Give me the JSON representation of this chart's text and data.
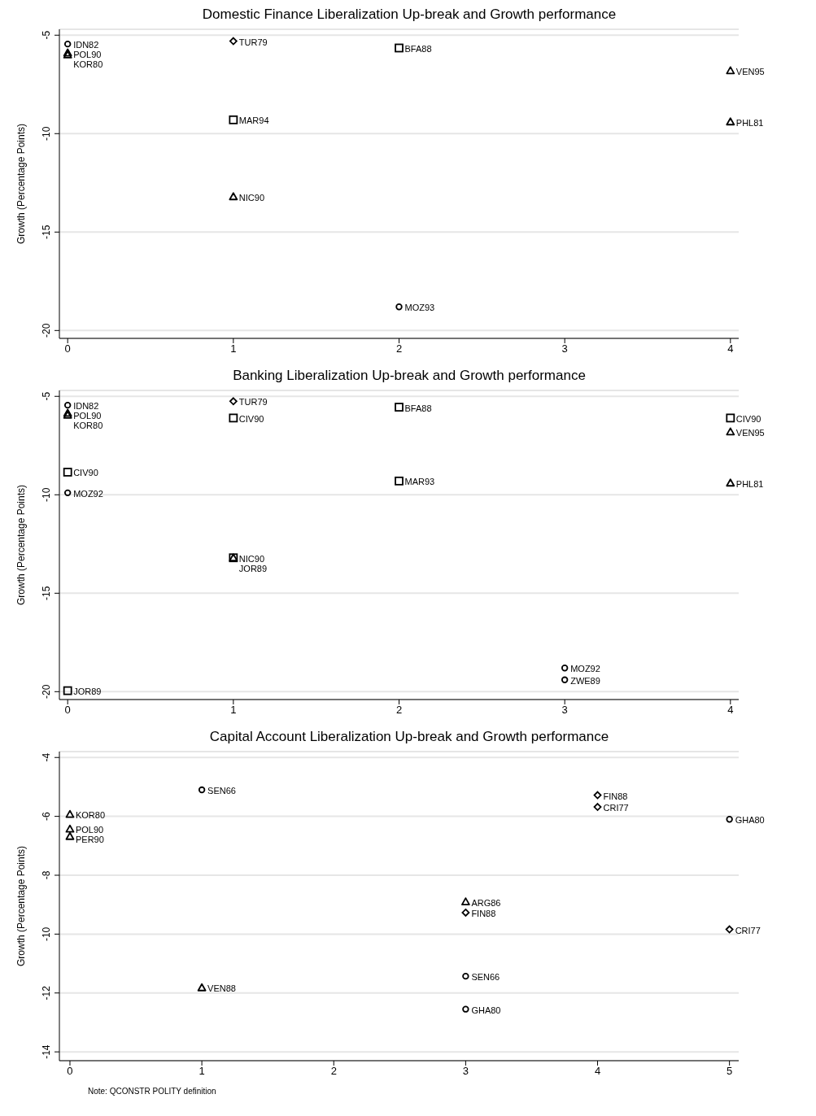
{
  "chart_data": [
    {
      "type": "scatter",
      "title": "Domestic Finance Liberalization Up-break and Growth performance",
      "ylabel": "Growth (Percentage Points)",
      "xlim": [
        -0.05,
        4.05
      ],
      "xticks": [
        0,
        1,
        2,
        3,
        4
      ],
      "ylim": [
        -20.4,
        -4.7
      ],
      "yticks": [
        -20,
        -15,
        -10,
        -5
      ],
      "grid": "y",
      "series": [
        {
          "type": "scatter",
          "marker": "circle",
          "color": "#000000",
          "x": [
            0,
            2
          ],
          "values": [
            -5.45,
            -18.8
          ]
        },
        {
          "type": "scatter",
          "marker": "triangle",
          "color": "#000000",
          "x": [
            0,
            0,
            1,
            4,
            4
          ],
          "values": [
            -5.9,
            -6.0,
            -13.2,
            -6.8,
            -9.4
          ]
        },
        {
          "type": "scatter",
          "marker": "square",
          "color": "#000000",
          "x": [
            1,
            2
          ],
          "values": [
            -9.3,
            -5.65
          ]
        },
        {
          "type": "scatter",
          "marker": "diamond",
          "color": "#000000",
          "x": [
            1
          ],
          "values": [
            -5.3
          ]
        }
      ],
      "annotations": [
        {
          "text": "IDN82",
          "x": 0,
          "y": -5.45
        },
        {
          "text": "POL90",
          "x": 0,
          "y": -5.9
        },
        {
          "text": "KOR80",
          "x": 0,
          "y": -6.0
        },
        {
          "text": "TUR79",
          "x": 1,
          "y": -5.3
        },
        {
          "text": "MAR94",
          "x": 1,
          "y": -9.3
        },
        {
          "text": "NIC90",
          "x": 1,
          "y": -13.2
        },
        {
          "text": "BFA88",
          "x": 2,
          "y": -5.65
        },
        {
          "text": "MOZ93",
          "x": 2,
          "y": -18.8
        },
        {
          "text": "VEN95",
          "x": 4,
          "y": -6.8
        },
        {
          "text": "PHL81",
          "x": 4,
          "y": -9.4
        }
      ]
    },
    {
      "type": "scatter",
      "title": "Banking Liberalization Up-break and Growth performance",
      "ylabel": "Growth (Percentage Points)",
      "xlim": [
        -0.05,
        4.05
      ],
      "xticks": [
        0,
        1,
        2,
        3,
        4
      ],
      "ylim": [
        -20.4,
        -4.7
      ],
      "yticks": [
        -20,
        -15,
        -10,
        -5
      ],
      "grid": "y",
      "series": [
        {
          "type": "scatter",
          "marker": "circle",
          "color": "#000000",
          "x": [
            0,
            0,
            3,
            3
          ],
          "values": [
            -5.45,
            -9.9,
            -18.8,
            -19.4
          ]
        },
        {
          "type": "scatter",
          "marker": "triangle",
          "color": "#000000",
          "x": [
            0,
            0,
            1,
            4,
            4
          ],
          "values": [
            -5.85,
            -5.95,
            -13.2,
            -6.8,
            -9.4
          ]
        },
        {
          "type": "scatter",
          "marker": "square",
          "color": "#000000",
          "x": [
            0,
            0,
            1,
            1,
            2,
            2,
            4
          ],
          "values": [
            -8.85,
            -19.95,
            -6.1,
            -13.2,
            -5.55,
            -9.3,
            -6.1
          ]
        },
        {
          "type": "scatter",
          "marker": "diamond",
          "color": "#000000",
          "x": [
            1
          ],
          "values": [
            -5.25
          ]
        }
      ],
      "annotations": [
        {
          "text": "IDN82",
          "x": 0,
          "y": -5.45
        },
        {
          "text": "POL90",
          "x": 0,
          "y": -5.85
        },
        {
          "text": "KOR80",
          "x": 0,
          "y": -5.95
        },
        {
          "text": "CIV90",
          "x": 0,
          "y": -8.85
        },
        {
          "text": "MOZ92",
          "x": 0,
          "y": -9.9
        },
        {
          "text": "JOR89",
          "x": 0,
          "y": -19.95
        },
        {
          "text": "TUR79",
          "x": 1,
          "y": -5.25
        },
        {
          "text": "CIV90",
          "x": 1,
          "y": -6.1
        },
        {
          "text": "NIC90",
          "x": 1,
          "y": -13.2
        },
        {
          "text": "JOR89",
          "x": 1,
          "y": -13.2
        },
        {
          "text": "BFA88",
          "x": 2,
          "y": -5.55
        },
        {
          "text": "MAR93",
          "x": 2,
          "y": -9.3
        },
        {
          "text": "MOZ92",
          "x": 3,
          "y": -18.8
        },
        {
          "text": "ZWE89",
          "x": 3,
          "y": -19.4
        },
        {
          "text": "CIV90",
          "x": 4,
          "y": -6.1
        },
        {
          "text": "VEN95",
          "x": 4,
          "y": -6.8
        },
        {
          "text": "PHL81",
          "x": 4,
          "y": -9.4
        }
      ]
    },
    {
      "type": "scatter",
      "title": "Capital Account Liberalization Up-break and Growth performance",
      "ylabel": "Growth (Percentage Points)",
      "xlim": [
        -0.08,
        5.07
      ],
      "xticks": [
        0,
        1,
        2,
        3,
        4,
        5
      ],
      "ylim": [
        -14.3,
        -3.8
      ],
      "yticks": [
        -14,
        -12,
        -10,
        -8,
        -6,
        -4
      ],
      "grid": "y",
      "series": [
        {
          "type": "scatter",
          "marker": "circle",
          "color": "#000000",
          "x": [
            1,
            3,
            3,
            5
          ],
          "values": [
            -5.1,
            -11.43,
            -12.55,
            -6.1
          ]
        },
        {
          "type": "scatter",
          "marker": "triangle",
          "color": "#000000",
          "x": [
            0,
            0,
            0,
            1,
            3
          ],
          "values": [
            -5.93,
            -6.43,
            -6.68,
            -11.82,
            -8.9
          ]
        },
        {
          "type": "scatter",
          "marker": "diamond",
          "color": "#000000",
          "x": [
            3,
            4,
            4,
            5
          ],
          "values": [
            -9.27,
            -5.28,
            -5.68,
            -9.84
          ]
        }
      ],
      "annotations": [
        {
          "text": "KOR80",
          "x": 0,
          "y": -5.93
        },
        {
          "text": "POL90",
          "x": 0,
          "y": -6.43
        },
        {
          "text": "PER90",
          "x": 0,
          "y": -6.68
        },
        {
          "text": "SEN66",
          "x": 1,
          "y": -5.1
        },
        {
          "text": "VEN88",
          "x": 1,
          "y": -11.82
        },
        {
          "text": "ARG86",
          "x": 3,
          "y": -8.9
        },
        {
          "text": "FIN88",
          "x": 3,
          "y": -9.27
        },
        {
          "text": "SEN66",
          "x": 3,
          "y": -11.43
        },
        {
          "text": "GHA80",
          "x": 3,
          "y": -12.55
        },
        {
          "text": "FIN88",
          "x": 4,
          "y": -5.28
        },
        {
          "text": "CRI77",
          "x": 4,
          "y": -5.68
        },
        {
          "text": "GHA80",
          "x": 5,
          "y": -6.1
        },
        {
          "text": "CRI77",
          "x": 5,
          "y": -9.84
        },
        "Note: QCONSTR POLITY definition"
      ]
    }
  ]
}
